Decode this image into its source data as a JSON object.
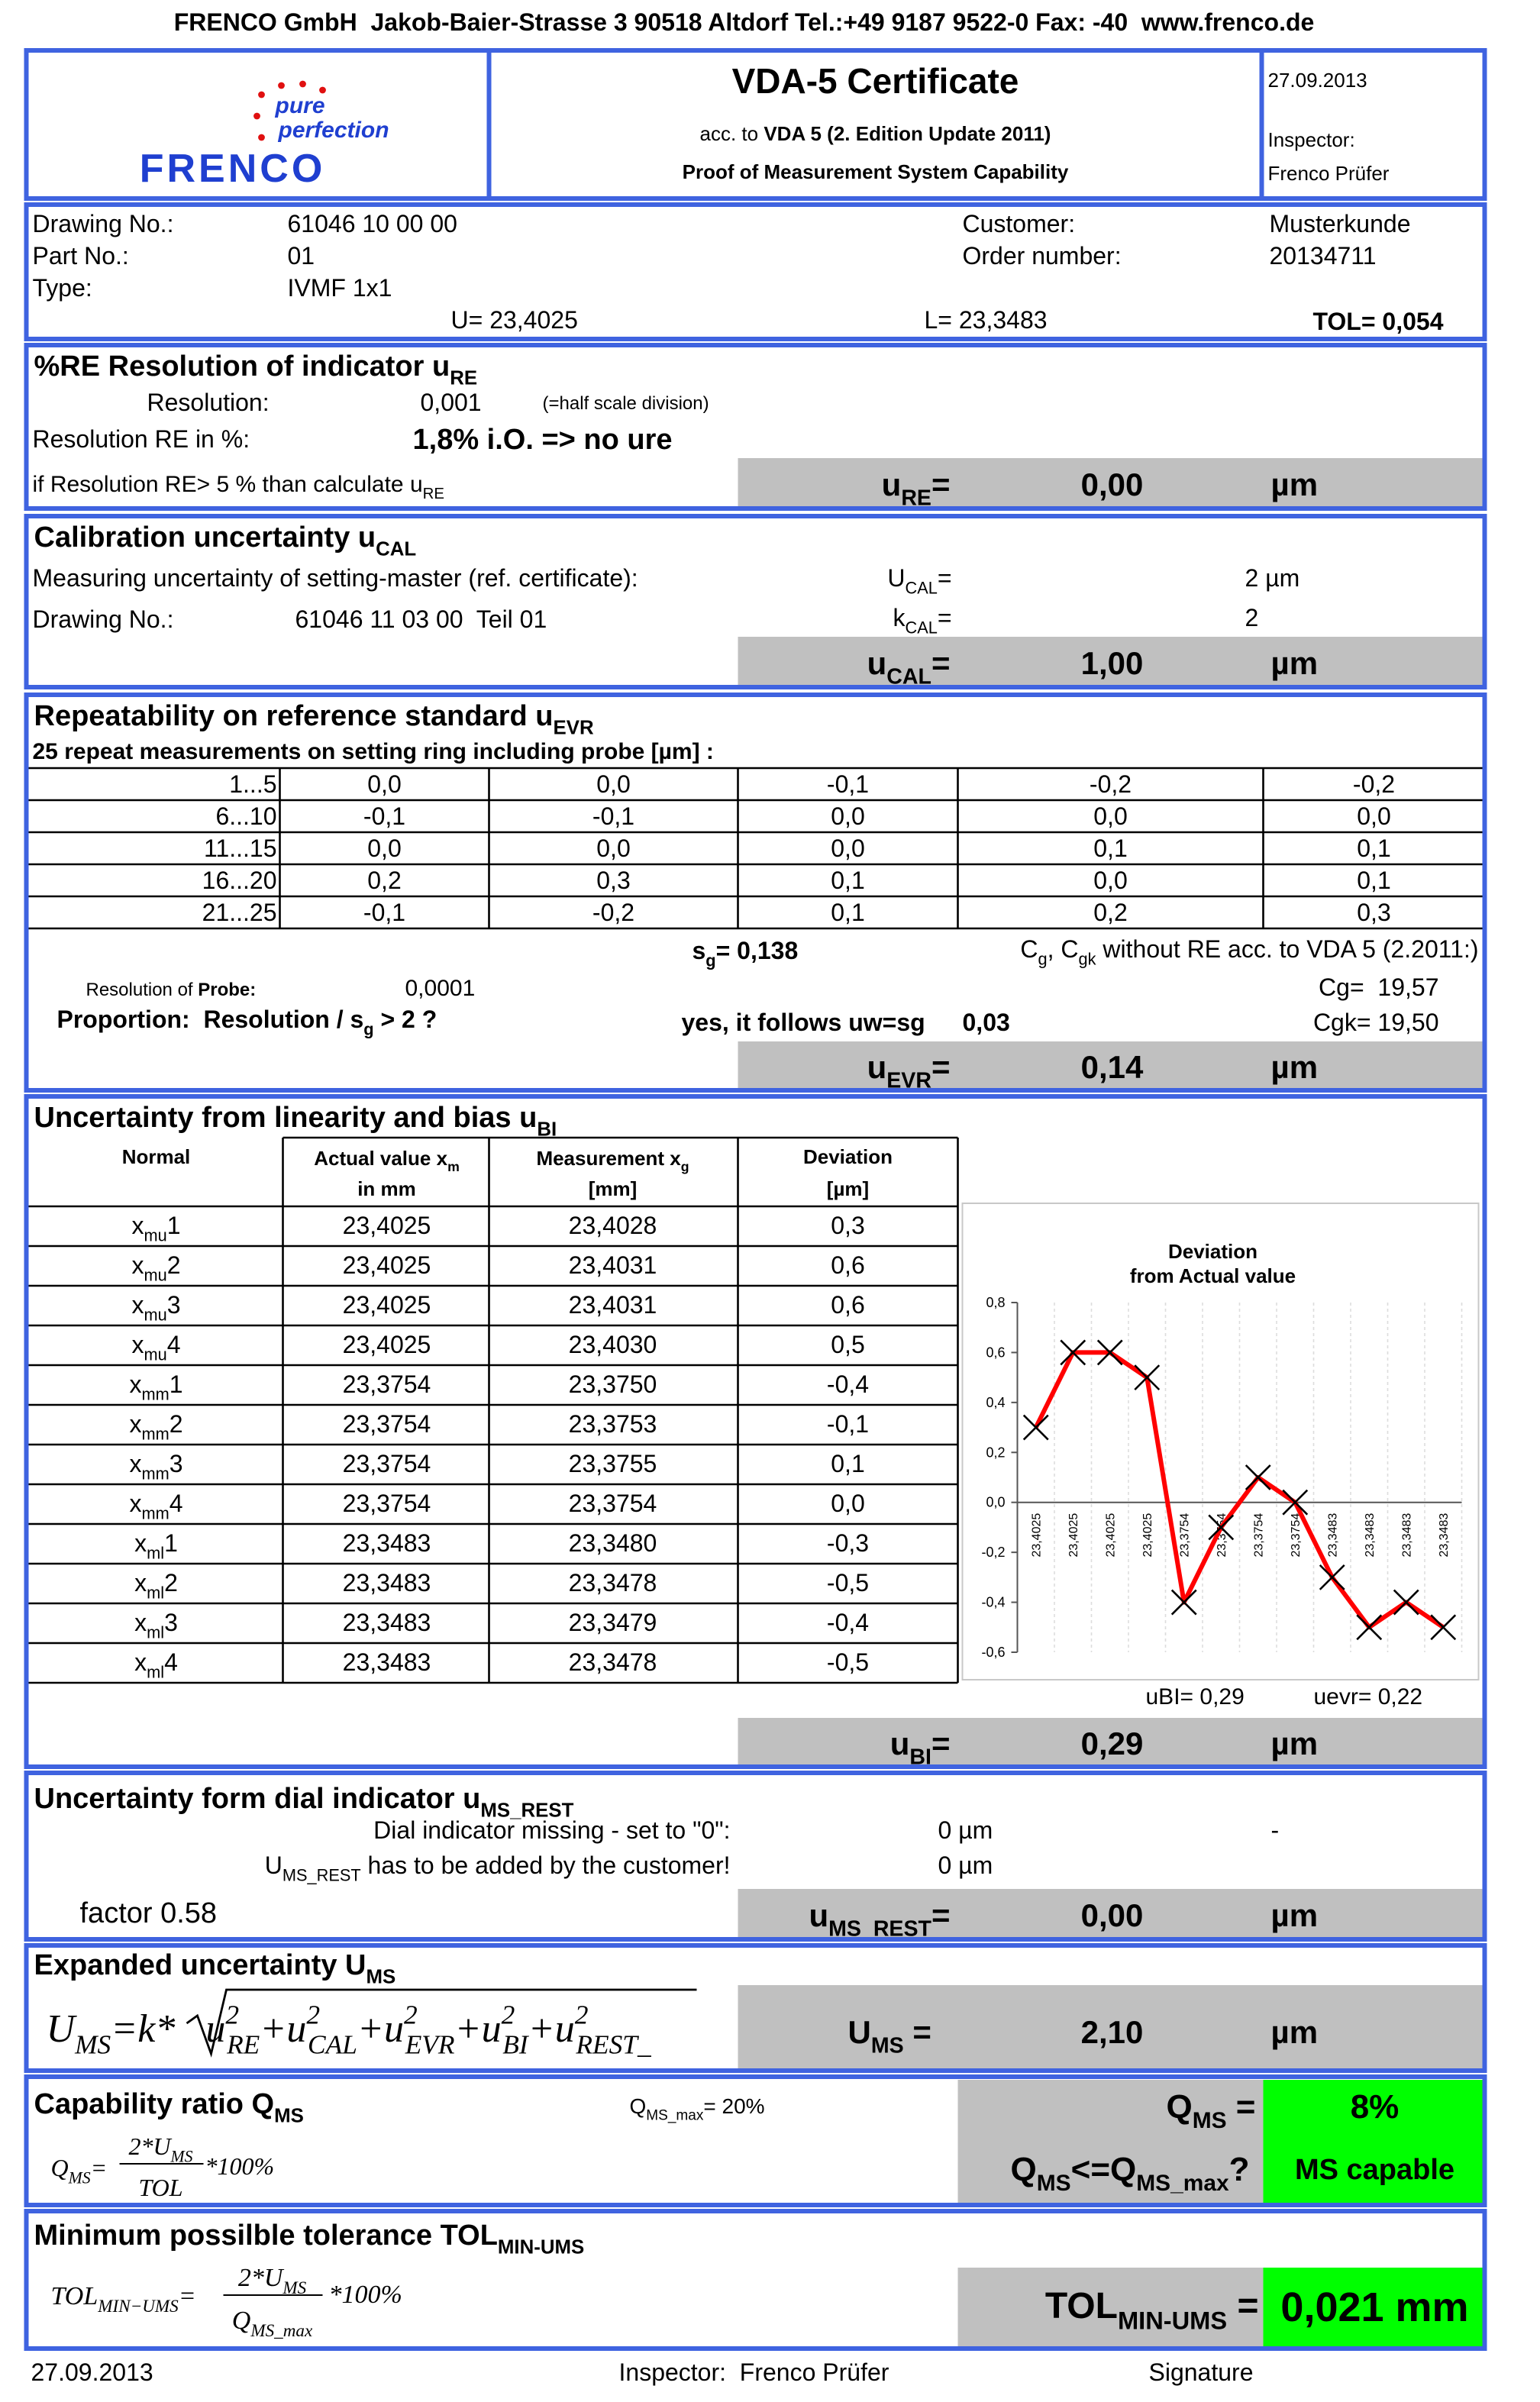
{
  "header": {
    "company": "FRENCO GmbH  Jakob-Baier-Strasse 3 90518 Altdorf Tel.:+49 9187 9522-0 Fax: -40  www.frenco.de",
    "logo": {
      "line1": "pure",
      "line2": "perfection",
      "name": "FRENCO"
    },
    "title": "VDA-5 Certificate",
    "acc_prefix": "acc. to ",
    "acc_standard": "VDA 5 (2. Edition Update 2011)",
    "subtitle": "Proof of Measurement System Capability",
    "date": "27.09.2013",
    "inspector_label": "Inspector:",
    "inspector": "Frenco Prüfer"
  },
  "part": {
    "rows": [
      [
        "Drawing No.:",
        "61046 10 00 00",
        "Customer:",
        "Musterkunde"
      ],
      [
        "Part No.:",
        "01",
        "Order number:",
        "20134711"
      ],
      [
        "Type:",
        "IVMF 1x1"
      ]
    ],
    "u": "U= 23,4025",
    "l": "L= 23,3483",
    "tol": "TOL= 0,054"
  },
  "resolution": {
    "title": "%RE Resolution of indicator u",
    "title_sub": "RE",
    "res_label": "Resolution:",
    "res_value": "0,001",
    "res_note": "(=half scale division)",
    "re_label": "Resolution RE in %:",
    "re_value": "1,8% i.O. => no ure",
    "rule": "if Resolution RE> 5 % than calculate u",
    "rule_sub": "RE",
    "result": {
      "symbol": "u",
      "sub": "RE",
      "eq": "=",
      "value": "0,00",
      "unit": "µm"
    }
  },
  "calibration": {
    "title": "Calibration uncertainty u",
    "title_sub": "CAL",
    "meas_label": "Measuring uncertainty of setting-master (ref. certificate):",
    "U_symbol": "U",
    "U_sub": "CAL",
    "eq": "=",
    "U_value": "2 µm",
    "drawing_label": "Drawing No.:",
    "drawing_value": "61046 11 03 00  Teil 01",
    "k_symbol": "k",
    "k_sub": "CAL",
    "k_value": "2",
    "result": {
      "symbol": "u",
      "sub": "CAL",
      "eq": "=",
      "value": "1,00",
      "unit": "µm"
    }
  },
  "repeatability": {
    "title": "Repeatability on reference standard u",
    "title_sub": "EVR",
    "subtitle": "25 repeat measurements on setting ring including probe [µm] :",
    "rows": [
      [
        "1...5",
        "0,0",
        "0,0",
        "-0,1",
        "-0,2",
        "-0,2"
      ],
      [
        "6...10",
        "-0,1",
        "-0,1",
        "0,0",
        "0,0",
        "0,0"
      ],
      [
        "11...15",
        "0,0",
        "0,0",
        "0,0",
        "0,1",
        "0,1"
      ],
      [
        "16...20",
        "0,2",
        "0,3",
        "0,1",
        "0,0",
        "0,1"
      ],
      [
        "21...25",
        "-0,1",
        "-0,2",
        "0,1",
        "0,2",
        "0,3"
      ]
    ],
    "sg_symbol": "s",
    "sg_sub": "g",
    "sg_eq": "= ",
    "sg_value": "0,138",
    "cg_c1": "C",
    "cg_sub1": "g",
    "cg_c2": ", C",
    "cg_sub2": "gk",
    "cg_rest": " without RE acc. to VDA 5 (2.2011:)",
    "probe_label1": "Resolution of ",
    "probe_label2": "Probe:",
    "probe_value": "0,0001",
    "proportion": "Proportion:  Resolution / s",
    "proportion_sub": "g",
    "proportion_rest": " > 2 ?",
    "yes": "yes, it follows uw=sg",
    "uw": "0,03",
    "cg": "Cg=  19,57",
    "cgk": "Cgk= 19,50",
    "result": {
      "symbol": "u",
      "sub": "EVR",
      "eq": "=",
      "value": "0,14",
      "unit": "µm"
    }
  },
  "linearity": {
    "title": "Uncertainty from linearity and bias u",
    "title_sub": "BI",
    "head": {
      "normal": "Normal",
      "actual": "Actual value x",
      "actual_sub": "m",
      "actual_unit": "in mm",
      "meas": "Measurement x",
      "meas_sub": "g",
      "meas_unit": "[mm]",
      "dev": "Deviation",
      "dev_unit": "[µm]"
    },
    "rows": [
      [
        "x",
        "mu",
        "1",
        "23,4025",
        "23,4028",
        "0,3"
      ],
      [
        "x",
        "mu",
        "2",
        "23,4025",
        "23,4031",
        "0,6"
      ],
      [
        "x",
        "mu",
        "3",
        "23,4025",
        "23,4031",
        "0,6"
      ],
      [
        "x",
        "mu",
        "4",
        "23,4025",
        "23,4030",
        "0,5"
      ],
      [
        "x",
        "mm",
        "1",
        "23,3754",
        "23,3750",
        "-0,4"
      ],
      [
        "x",
        "mm",
        "2",
        "23,3754",
        "23,3753",
        "-0,1"
      ],
      [
        "x",
        "mm",
        "3",
        "23,3754",
        "23,3755",
        "0,1"
      ],
      [
        "x",
        "mm",
        "4",
        "23,3754",
        "23,3754",
        "0,0"
      ],
      [
        "x",
        "ml",
        "1",
        "23,3483",
        "23,3480",
        "-0,3"
      ],
      [
        "x",
        "ml",
        "2",
        "23,3483",
        "23,3478",
        "-0,5"
      ],
      [
        "x",
        "ml",
        "3",
        "23,3483",
        "23,3479",
        "-0,4"
      ],
      [
        "x",
        "ml",
        "4",
        "23,3483",
        "23,3478",
        "-0,5"
      ]
    ],
    "ubi": "uBI= 0,29",
    "uevr": "uevr= 0,22",
    "result": {
      "symbol": "u",
      "sub": "BI",
      "eq": "=",
      "value": "0,29",
      "unit": "µm"
    }
  },
  "chart_data": {
    "type": "line",
    "title": [
      "Deviation",
      "from Actual value"
    ],
    "categories": [
      "23,4025",
      "23,4025",
      "23,4025",
      "23,4025",
      "23,3754",
      "23,3754",
      "23,3754",
      "23,3754",
      "23,3483",
      "23,3483",
      "23,3483",
      "23,3483"
    ],
    "series": [
      {
        "color": "#ff0000",
        "marker_color": "#000000",
        "values": [
          0.3,
          0.6,
          0.6,
          0.5,
          -0.4,
          -0.1,
          0.1,
          0.0,
          -0.3,
          -0.5,
          -0.4,
          -0.5
        ]
      }
    ],
    "ylim": [
      -0.6,
      0.8
    ],
    "yticks": [
      {
        "value": -0.6,
        "label": "-0,6"
      },
      {
        "value": -0.4,
        "label": "-0,4"
      },
      {
        "value": -0.2,
        "label": "-0,2"
      },
      {
        "value": 0,
        "label": "0,0"
      },
      {
        "value": 0.2,
        "label": "0,2"
      },
      {
        "value": 0.4,
        "label": "0,4"
      },
      {
        "value": 0.6,
        "label": "0,6"
      },
      {
        "value": 0.8,
        "label": "0,8"
      }
    ]
  },
  "rest": {
    "title": "Uncertainty form dial indicator u",
    "title_sub": "MS_REST",
    "missing": "Dial indicator missing - set to \"0\":",
    "missing_value": "0 µm",
    "missing_flag": "-",
    "added_symbol": "U",
    "added_sub": "MS_REST",
    "added": " has to be added by the customer!",
    "added_value": "0 µm",
    "factor": "factor 0.58",
    "result": {
      "symbol": "u",
      "sub": "MS_REST",
      "eq": "=",
      "value": "0,00",
      "unit": "µm"
    }
  },
  "expanded": {
    "title": "Expanded uncertainty U",
    "title_sub": "MS",
    "formula": {
      "lhs": "U",
      "lhs_sub": "MS",
      "eq": "=k*",
      "plus": "+",
      "terms": [
        {
          "base": "u",
          "sup": "2",
          "sub": "RE"
        },
        {
          "base": "u",
          "sup": "2",
          "sub": "CAL"
        },
        {
          "base": "u",
          "sup": "2",
          "sub": "EVR"
        },
        {
          "base": "u",
          "sup": "2",
          "sub": "BI"
        },
        {
          "base": "u",
          "sup": "2",
          "sub": "REST_"
        }
      ]
    },
    "result": {
      "symbol": "U",
      "sub": "MS",
      "eq": " =",
      "value": "2,10",
      "unit": "µm"
    }
  },
  "capability": {
    "title": "Capability ratio Q",
    "title_sub": "MS",
    "formula": {
      "lhs": "Q",
      "lhs_sub": "MS",
      "eq": "=",
      "num": "2*U",
      "num_sub": "MS",
      "den": "TOL",
      "factor": "*100%"
    },
    "max_symbol": "Q",
    "max_sub": "MS_max",
    "max_eq": "= 20%",
    "q_symbol": "Q",
    "q_sub": "MS",
    "q_eq": " =",
    "q_value": "8%",
    "check1": "Q",
    "check_sub1": "MS",
    "check2": "<=Q",
    "check_sub2": "MS_max",
    "check3": "?",
    "verdict": "MS capable"
  },
  "min_tol": {
    "title": "Minimum possilble tolerance TOL",
    "title_sub": "MIN-UMS",
    "formula": {
      "lhs": "TOL",
      "lhs_sub": "MIN−UMS",
      "eq": "=",
      "num": "2*U",
      "num_sub": "MS",
      "den": "Q",
      "den_sub": "MS_max",
      "factor": "*100%"
    },
    "result": {
      "symbol": "TOL",
      "sub": "MIN-UMS",
      "eq": " =",
      "value": "0,021 mm"
    }
  },
  "footer": {
    "date": "27.09.2013",
    "inspector": "Inspector:  Frenco Prüfer",
    "signature": "Signature"
  }
}
